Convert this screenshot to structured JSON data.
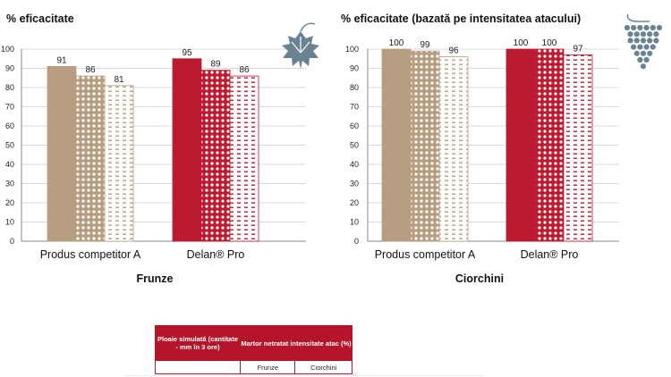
{
  "colors": {
    "tan": "#b79e80",
    "red": "#bc1a31",
    "axis": "#888888",
    "grid": "#d9d9d9",
    "icon": "#6a8393",
    "table_header": "#b5152b"
  },
  "icons": {
    "left": "vine-leaf-icon",
    "right": "grape-bunch-icon"
  },
  "chart_data": [
    {
      "type": "bar",
      "title": "% eficacitate",
      "xlabel": "Frunze",
      "ylabel": "",
      "ylim": [
        0,
        100
      ],
      "yticks": [
        0,
        10,
        20,
        30,
        40,
        50,
        60,
        70,
        80,
        90,
        100
      ],
      "grid": true,
      "legend": "none",
      "categories": [
        "Produs competitor A",
        "Delan® Pro"
      ],
      "series": [
        {
          "fill": "solid",
          "values": [
            91,
            95
          ]
        },
        {
          "fill": "dots",
          "values": [
            86,
            89
          ]
        },
        {
          "fill": "dashes",
          "values": [
            81,
            86
          ]
        }
      ],
      "data_labels": [
        [
          "91",
          "86",
          "81"
        ],
        [
          "95",
          "89",
          "86"
        ]
      ]
    },
    {
      "type": "bar",
      "title": "% eficacitate (bazată pe intensitatea atacului)",
      "xlabel": "Ciorchini",
      "ylabel": "",
      "ylim": [
        0,
        100
      ],
      "yticks": [
        0,
        10,
        20,
        30,
        40,
        50,
        60,
        70,
        80,
        90,
        100
      ],
      "grid": true,
      "legend": "none",
      "categories": [
        "Produs competitor A",
        "Delan® Pro"
      ],
      "series": [
        {
          "fill": "solid",
          "values": [
            100,
            100
          ]
        },
        {
          "fill": "dots",
          "values": [
            99,
            100
          ]
        },
        {
          "fill": "dashes",
          "values": [
            96,
            97
          ]
        }
      ],
      "data_labels": [
        [
          "100",
          "99",
          "96"
        ],
        [
          "100",
          "100",
          "97"
        ]
      ]
    }
  ],
  "table": {
    "col1_header": "Ploaie simulată (cantitate - mm în 3 ore)",
    "col2_header": "Martor netratat intensitate atac (%)",
    "sub_headers": [
      "Frunze",
      "Ciorchini"
    ]
  }
}
